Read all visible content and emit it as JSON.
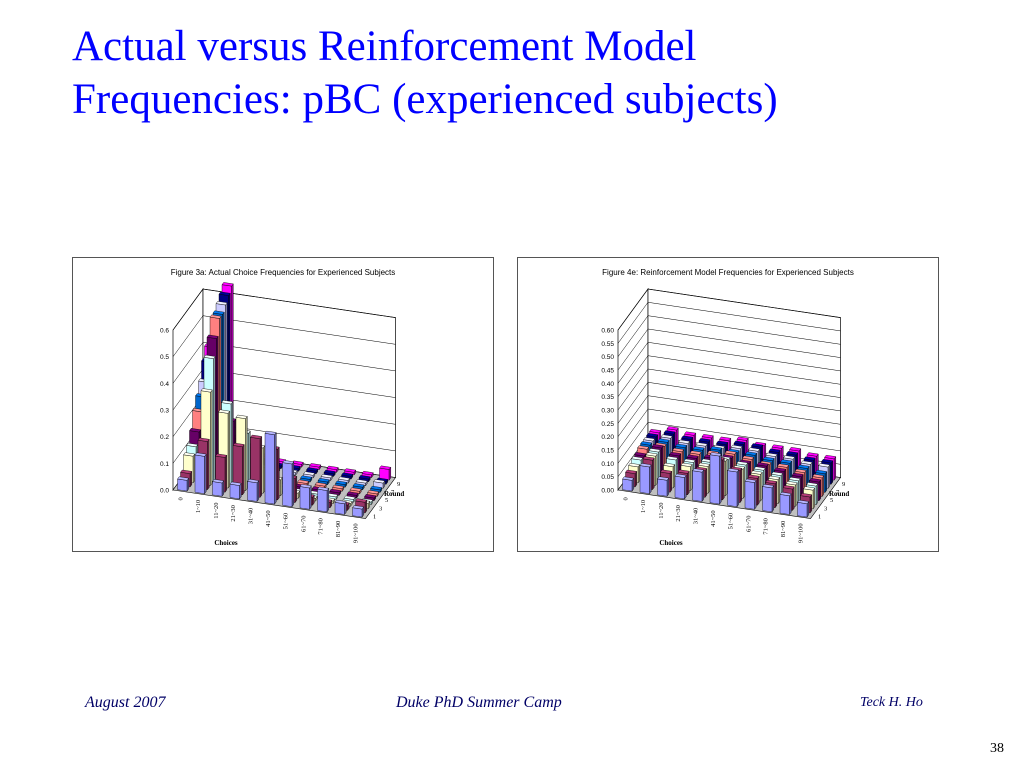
{
  "slide": {
    "title_line1": "Actual versus Reinforcement Model",
    "title_line2": "Frequencies: pBC (experienced subjects)"
  },
  "footer": {
    "date": "August 2007",
    "event": "Duke PhD Summer Camp",
    "author": "Teck H. Ho",
    "page": "38"
  },
  "colors": {
    "title": "#0000ff",
    "footer": "#000066",
    "series_palette": [
      "#9999ff",
      "#993366",
      "#ffffcc",
      "#ccffff",
      "#660066",
      "#ff8080",
      "#0066cc",
      "#ccccff",
      "#000080",
      "#ff00ff"
    ]
  },
  "chart_data": [
    {
      "type": "bar3d",
      "title": "Figure 3a: Actual Choice Frequencies for Experienced Subjects",
      "xlabel": "Choices",
      "zlabel": "Round",
      "categories": [
        "0",
        "1~10",
        "11~20",
        "21~30",
        "31~40",
        "41~50",
        "51~60",
        "61~70",
        "71~80",
        "81~90",
        "91~100"
      ],
      "rounds": [
        1,
        2,
        3,
        4,
        5,
        6,
        7,
        8,
        9,
        10
      ],
      "round_tick_labels": [
        "1",
        "3",
        "5",
        "7",
        "9"
      ],
      "ylim": [
        0,
        0.6
      ],
      "yticks": [
        "0.0",
        "0.1",
        "0.2",
        "0.3",
        "0.4",
        "0.5",
        "0.6"
      ],
      "grid": true,
      "values": [
        [
          0.04,
          0.14,
          0.05,
          0.05,
          0.07,
          0.26,
          0.16,
          0.08,
          0.08,
          0.04,
          0.03
        ],
        [
          0.05,
          0.18,
          0.13,
          0.18,
          0.22,
          0.19,
          0.09,
          0.03,
          0.02,
          0.02,
          0.04
        ],
        [
          0.1,
          0.35,
          0.28,
          0.27,
          0.17,
          0.06,
          0.02,
          0.01,
          0.01,
          0.01,
          0.02
        ],
        [
          0.12,
          0.46,
          0.3,
          0.2,
          0.08,
          0.02,
          0.01,
          0.01,
          0.01,
          0.01,
          0.01
        ],
        [
          0.16,
          0.52,
          0.22,
          0.12,
          0.04,
          0.01,
          0.01,
          0.01,
          0.01,
          0.01,
          0.01
        ],
        [
          0.22,
          0.58,
          0.14,
          0.06,
          0.02,
          0.01,
          0.01,
          0.01,
          0.01,
          0.01,
          0.01
        ],
        [
          0.26,
          0.58,
          0.1,
          0.04,
          0.02,
          0.01,
          0.01,
          0.01,
          0.01,
          0.01,
          0.01
        ],
        [
          0.3,
          0.6,
          0.08,
          0.03,
          0.01,
          0.01,
          0.01,
          0.01,
          0.01,
          0.01,
          0.02
        ],
        [
          0.36,
          0.62,
          0.06,
          0.02,
          0.01,
          0.01,
          0.01,
          0.01,
          0.01,
          0.01,
          0.01
        ],
        [
          0.4,
          0.64,
          0.05,
          0.02,
          0.01,
          0.01,
          0.01,
          0.01,
          0.01,
          0.01,
          0.04
        ]
      ]
    },
    {
      "type": "bar3d",
      "title": "Figure 4e: Reinforcement Model Frequencies for Experienced Subjects",
      "xlabel": "Choices",
      "zlabel": "Round",
      "categories": [
        "0",
        "1~10",
        "11~20",
        "21~30",
        "31~40",
        "41~50",
        "51~60",
        "61~70",
        "71~80",
        "81~90",
        "91~100"
      ],
      "rounds": [
        1,
        2,
        3,
        4,
        5,
        6,
        7,
        8,
        9,
        10
      ],
      "round_tick_labels": [
        "1",
        "3",
        "5",
        "7",
        "9"
      ],
      "ylim": [
        0,
        0.6
      ],
      "yticks": [
        "0.00",
        "0.05",
        "0.10",
        "0.15",
        "0.20",
        "0.25",
        "0.30",
        "0.35",
        "0.40",
        "0.45",
        "0.50",
        "0.55",
        "0.60"
      ],
      "grid": true,
      "values": [
        [
          0.04,
          0.1,
          0.06,
          0.08,
          0.11,
          0.18,
          0.13,
          0.1,
          0.09,
          0.07,
          0.05
        ],
        [
          0.05,
          0.11,
          0.07,
          0.08,
          0.1,
          0.15,
          0.12,
          0.1,
          0.09,
          0.08,
          0.06
        ],
        [
          0.06,
          0.11,
          0.08,
          0.09,
          0.1,
          0.13,
          0.11,
          0.1,
          0.09,
          0.08,
          0.07
        ],
        [
          0.07,
          0.11,
          0.09,
          0.09,
          0.1,
          0.12,
          0.11,
          0.1,
          0.09,
          0.08,
          0.07
        ],
        [
          0.07,
          0.11,
          0.09,
          0.09,
          0.1,
          0.11,
          0.1,
          0.1,
          0.09,
          0.08,
          0.07
        ],
        [
          0.08,
          0.1,
          0.09,
          0.09,
          0.1,
          0.11,
          0.1,
          0.09,
          0.09,
          0.08,
          0.07
        ],
        [
          0.08,
          0.1,
          0.09,
          0.09,
          0.1,
          0.1,
          0.1,
          0.09,
          0.09,
          0.08,
          0.07
        ],
        [
          0.08,
          0.1,
          0.09,
          0.09,
          0.09,
          0.1,
          0.1,
          0.09,
          0.09,
          0.08,
          0.08
        ],
        [
          0.08,
          0.1,
          0.09,
          0.09,
          0.09,
          0.1,
          0.1,
          0.09,
          0.09,
          0.08,
          0.08
        ],
        [
          0.08,
          0.1,
          0.09,
          0.09,
          0.09,
          0.1,
          0.09,
          0.09,
          0.09,
          0.08,
          0.08
        ]
      ]
    }
  ]
}
